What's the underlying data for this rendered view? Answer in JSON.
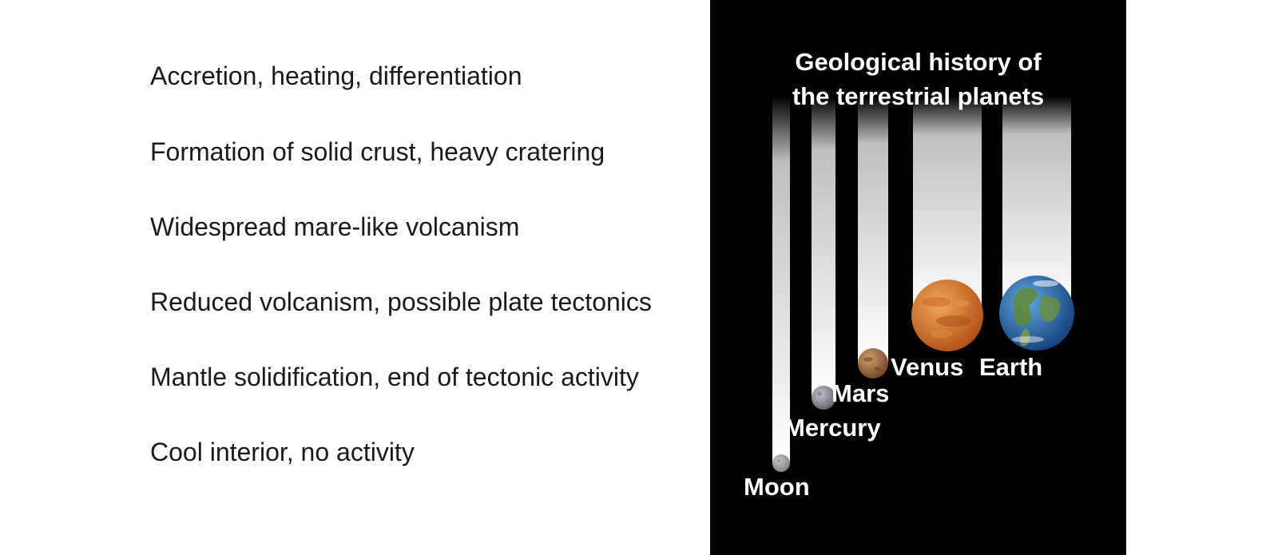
{
  "stages": [
    "Accretion, heating, differentiation",
    "Formation of solid crust, heavy cratering",
    "Widespread mare-like volcanism",
    "Reduced volcanism, possible plate tectonics",
    "Mantle solidification, end of tectonic activity",
    "Cool interior, no activity"
  ],
  "panel": {
    "title_line1": "Geological history of",
    "title_line2": "the terrestrial planets",
    "background": "#000000"
  },
  "planets": [
    {
      "name": "Moon",
      "colors": [
        "#c9c9c9",
        "#7d7d7d"
      ]
    },
    {
      "name": "Mercury",
      "colors": [
        "#c3c6cc",
        "#5e6168"
      ]
    },
    {
      "name": "Mars",
      "colors": [
        "#d3a070",
        "#6e4225"
      ]
    },
    {
      "name": "Venus",
      "colors": [
        "#f0a85a",
        "#b04f14"
      ]
    },
    {
      "name": "Earth",
      "colors": [
        "#5fa7dd",
        "#143f7a"
      ]
    }
  ]
}
